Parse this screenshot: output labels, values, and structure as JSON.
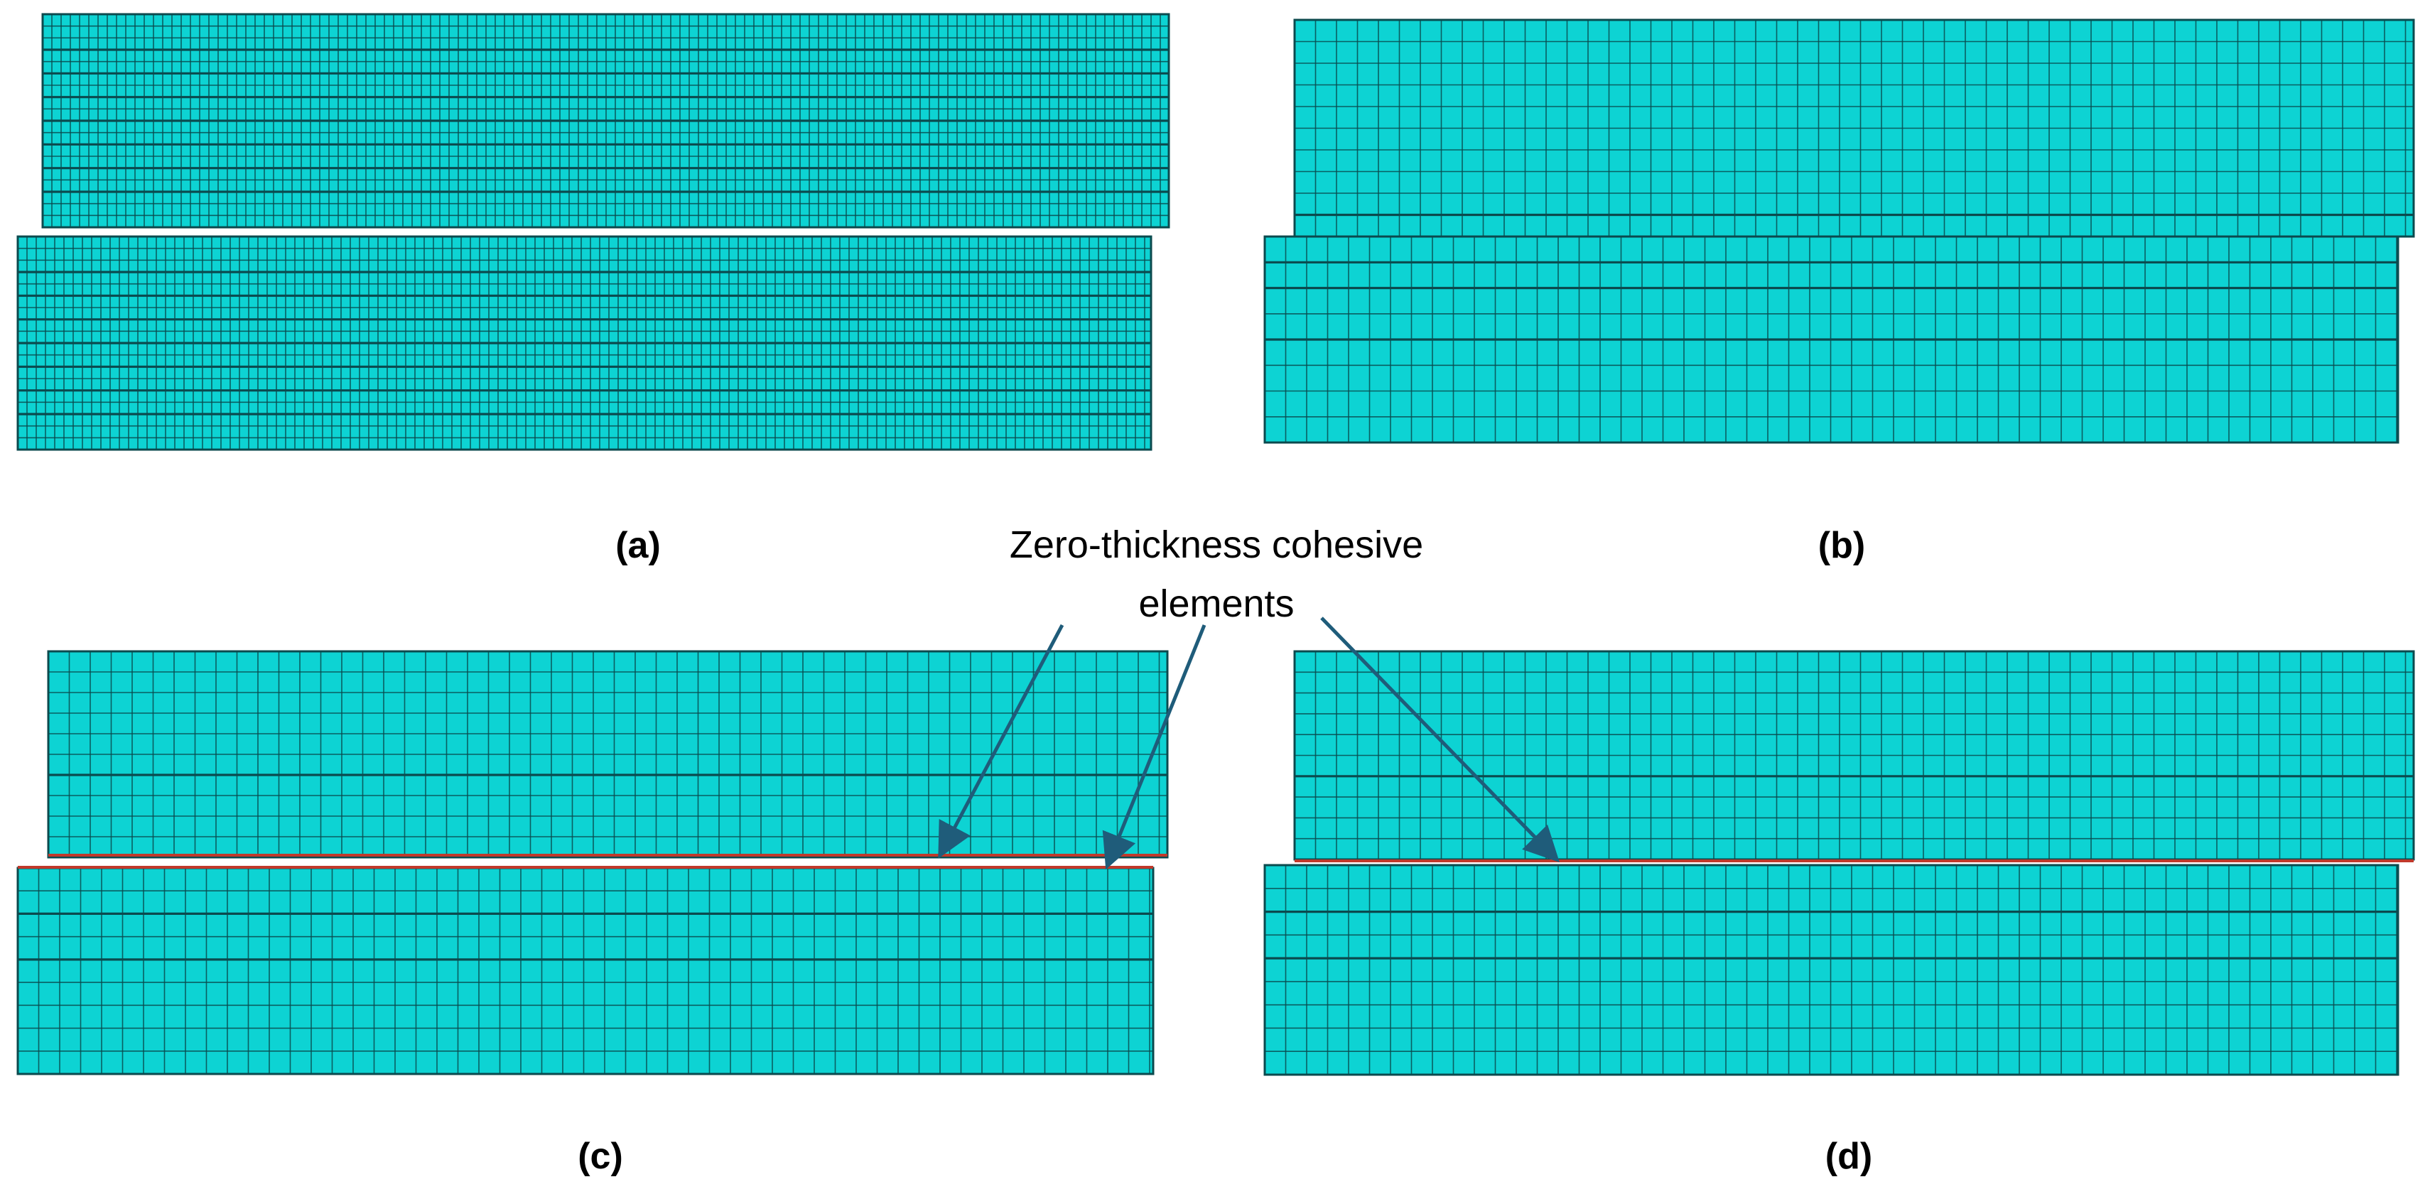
{
  "annotation": {
    "line1": "Zero-thickness cohesive",
    "line2": "elements"
  },
  "colors": {
    "mesh_fill": "#0dd3d3",
    "mesh_line": "#0b4a4e",
    "cohesive": "#c0392b",
    "arrow": "#1f5c7a"
  },
  "panels": [
    {
      "id": "a",
      "label": "(a)",
      "cohesive": false
    },
    {
      "id": "b",
      "label": "(b)",
      "cohesive": false
    },
    {
      "id": "c",
      "label": "(c)",
      "cohesive": true,
      "cohesive_lines": 2
    },
    {
      "id": "d",
      "label": "(d)",
      "cohesive": true,
      "cohesive_lines": 1
    }
  ]
}
